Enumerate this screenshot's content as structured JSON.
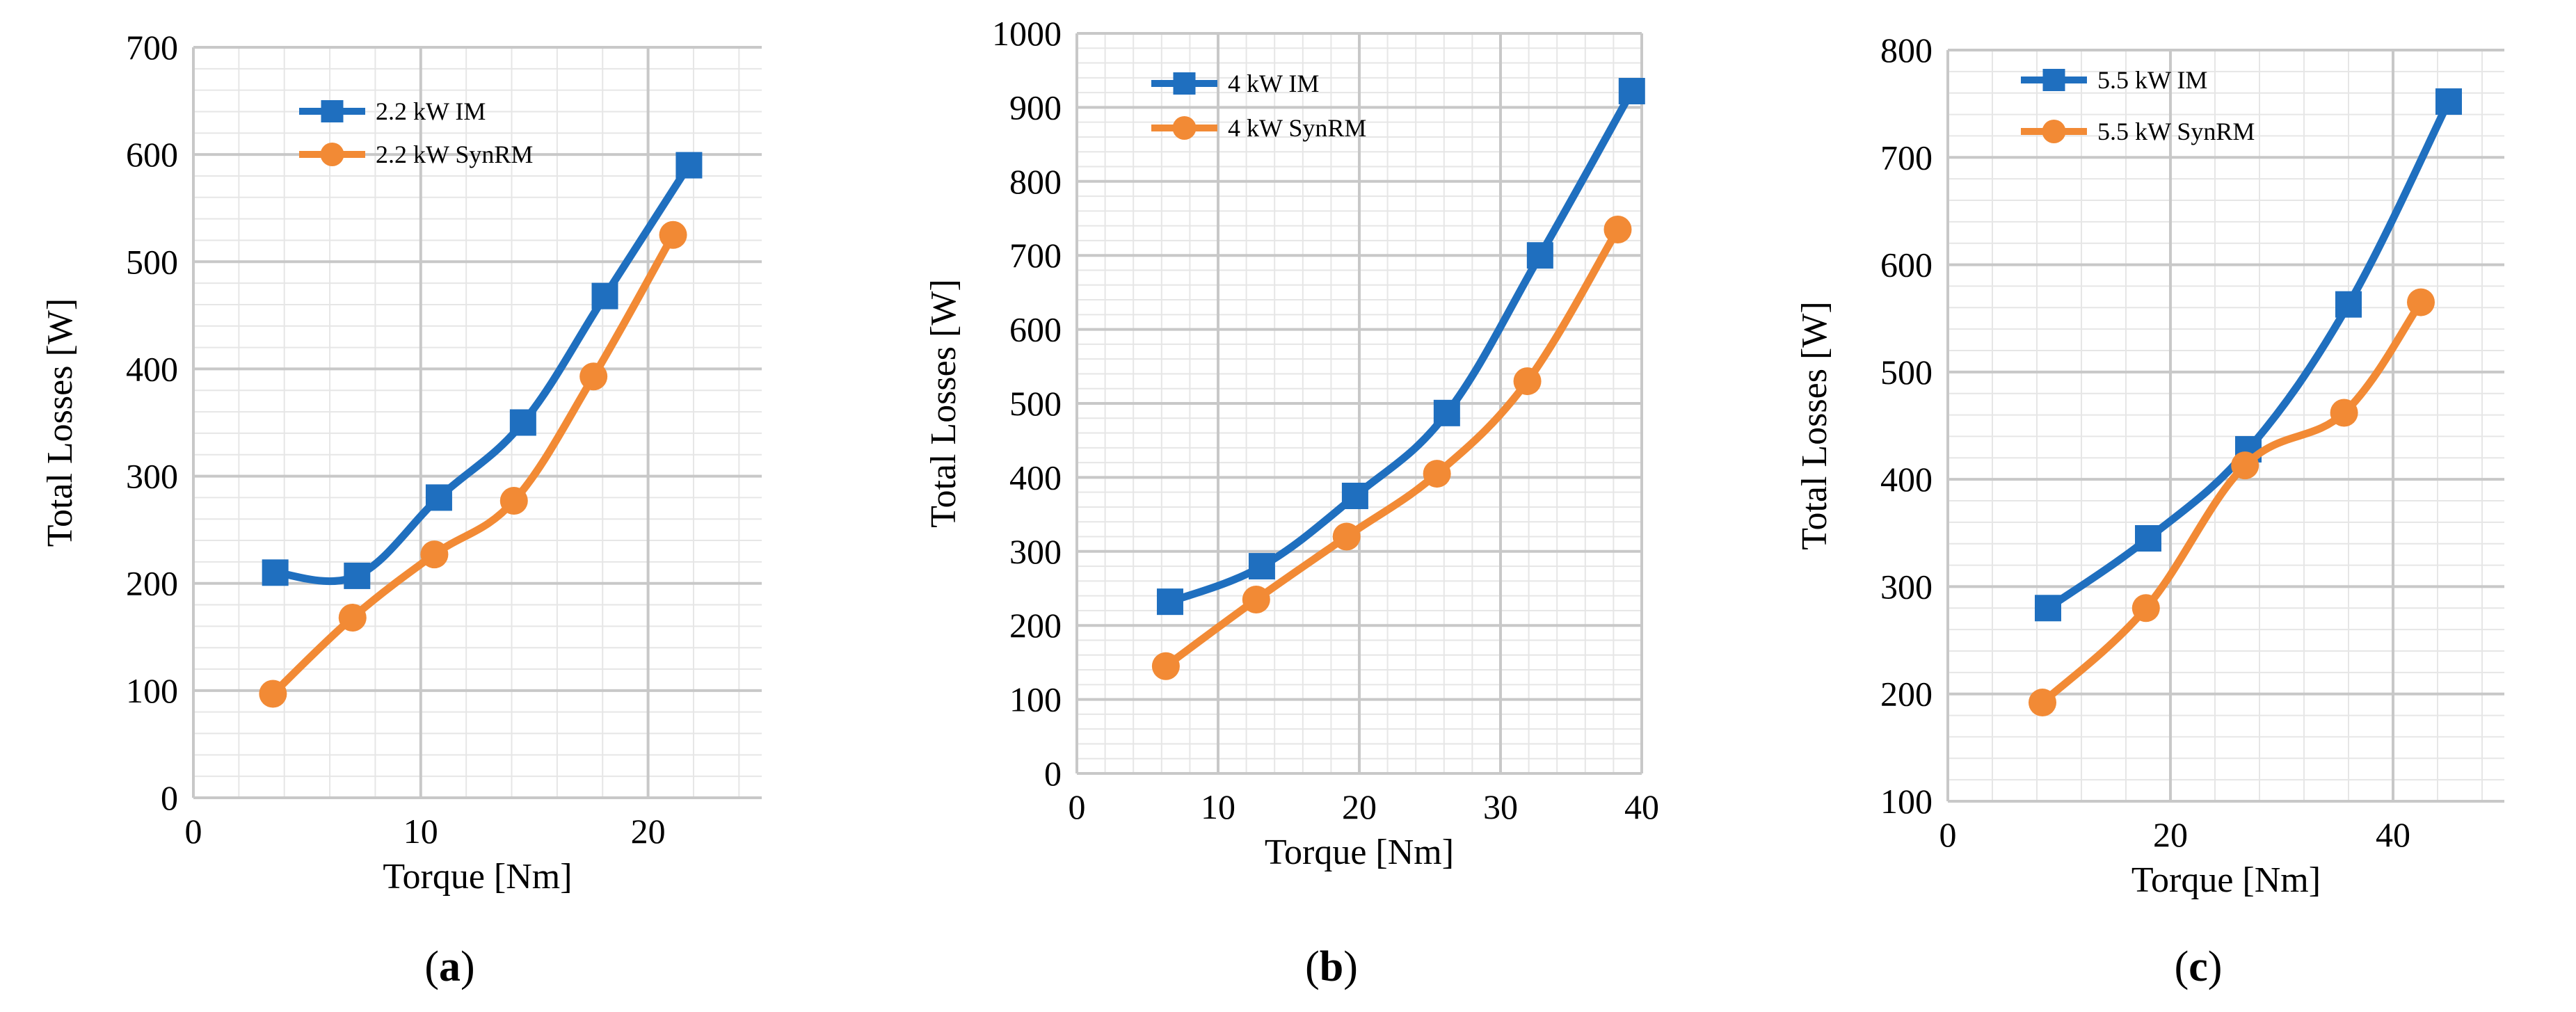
{
  "chart_data": [
    {
      "type": "line",
      "panel_label": "a",
      "xlabel": "Torque [Nm]",
      "ylabel": "Total Losses [W]",
      "xlim": [
        0,
        25
      ],
      "ylim": [
        0,
        700
      ],
      "xticks": [
        0,
        10,
        20
      ],
      "yticks": [
        0,
        100,
        200,
        300,
        400,
        500,
        600,
        700
      ],
      "grid": true,
      "legend_position": "top-center",
      "series": [
        {
          "name": "2.2 kW IM",
          "marker": "square",
          "color": "#1f6fbf",
          "x": [
            3.6,
            7.2,
            10.8,
            14.5,
            18.1,
            21.8
          ],
          "y": [
            210,
            207,
            280,
            350,
            468,
            590
          ]
        },
        {
          "name": "2.2 kW SynRM",
          "marker": "circle",
          "color": "#f28a35",
          "x": [
            3.5,
            7.0,
            10.6,
            14.1,
            17.6,
            21.1
          ],
          "y": [
            97,
            168,
            227,
            277,
            393,
            525
          ]
        }
      ]
    },
    {
      "type": "line",
      "panel_label": "b",
      "xlabel": "Torque [Nm]",
      "ylabel": "Total Losses [W]",
      "xlim": [
        0,
        40
      ],
      "ylim": [
        0,
        1000
      ],
      "xticks": [
        0,
        10,
        20,
        30,
        40
      ],
      "yticks": [
        0,
        100,
        200,
        300,
        400,
        500,
        600,
        700,
        800,
        900,
        1000
      ],
      "grid": true,
      "legend_position": "top-left",
      "series": [
        {
          "name": "4 kW IM",
          "marker": "square",
          "color": "#1f6fbf",
          "x": [
            6.6,
            13.1,
            19.7,
            26.2,
            32.8,
            39.3
          ],
          "y": [
            232,
            280,
            375,
            487,
            700,
            922
          ]
        },
        {
          "name": "4 kW SynRM",
          "marker": "circle",
          "color": "#f28a35",
          "x": [
            6.3,
            12.7,
            19.1,
            25.5,
            31.9,
            38.3
          ],
          "y": [
            145,
            235,
            320,
            405,
            530,
            735
          ]
        }
      ]
    },
    {
      "type": "line",
      "panel_label": "c",
      "xlabel": "Torque [Nm]",
      "ylabel": "Total Losses [W]",
      "xlim": [
        0,
        50
      ],
      "ylim": [
        100,
        800
      ],
      "xticks": [
        0,
        20,
        40
      ],
      "yticks": [
        100,
        200,
        300,
        400,
        500,
        600,
        700,
        800
      ],
      "grid": true,
      "legend_position": "top-left",
      "series": [
        {
          "name": "5.5 kW IM",
          "marker": "square",
          "color": "#1f6fbf",
          "x": [
            9.0,
            18.0,
            27.0,
            36.0,
            45.0
          ],
          "y": [
            280,
            345,
            428,
            563,
            752
          ]
        },
        {
          "name": "5.5 kW SynRM",
          "marker": "circle",
          "color": "#f28a35",
          "x": [
            8.5,
            17.8,
            26.7,
            35.6,
            42.5
          ],
          "y": [
            192,
            280,
            413,
            462,
            565
          ]
        }
      ]
    }
  ]
}
